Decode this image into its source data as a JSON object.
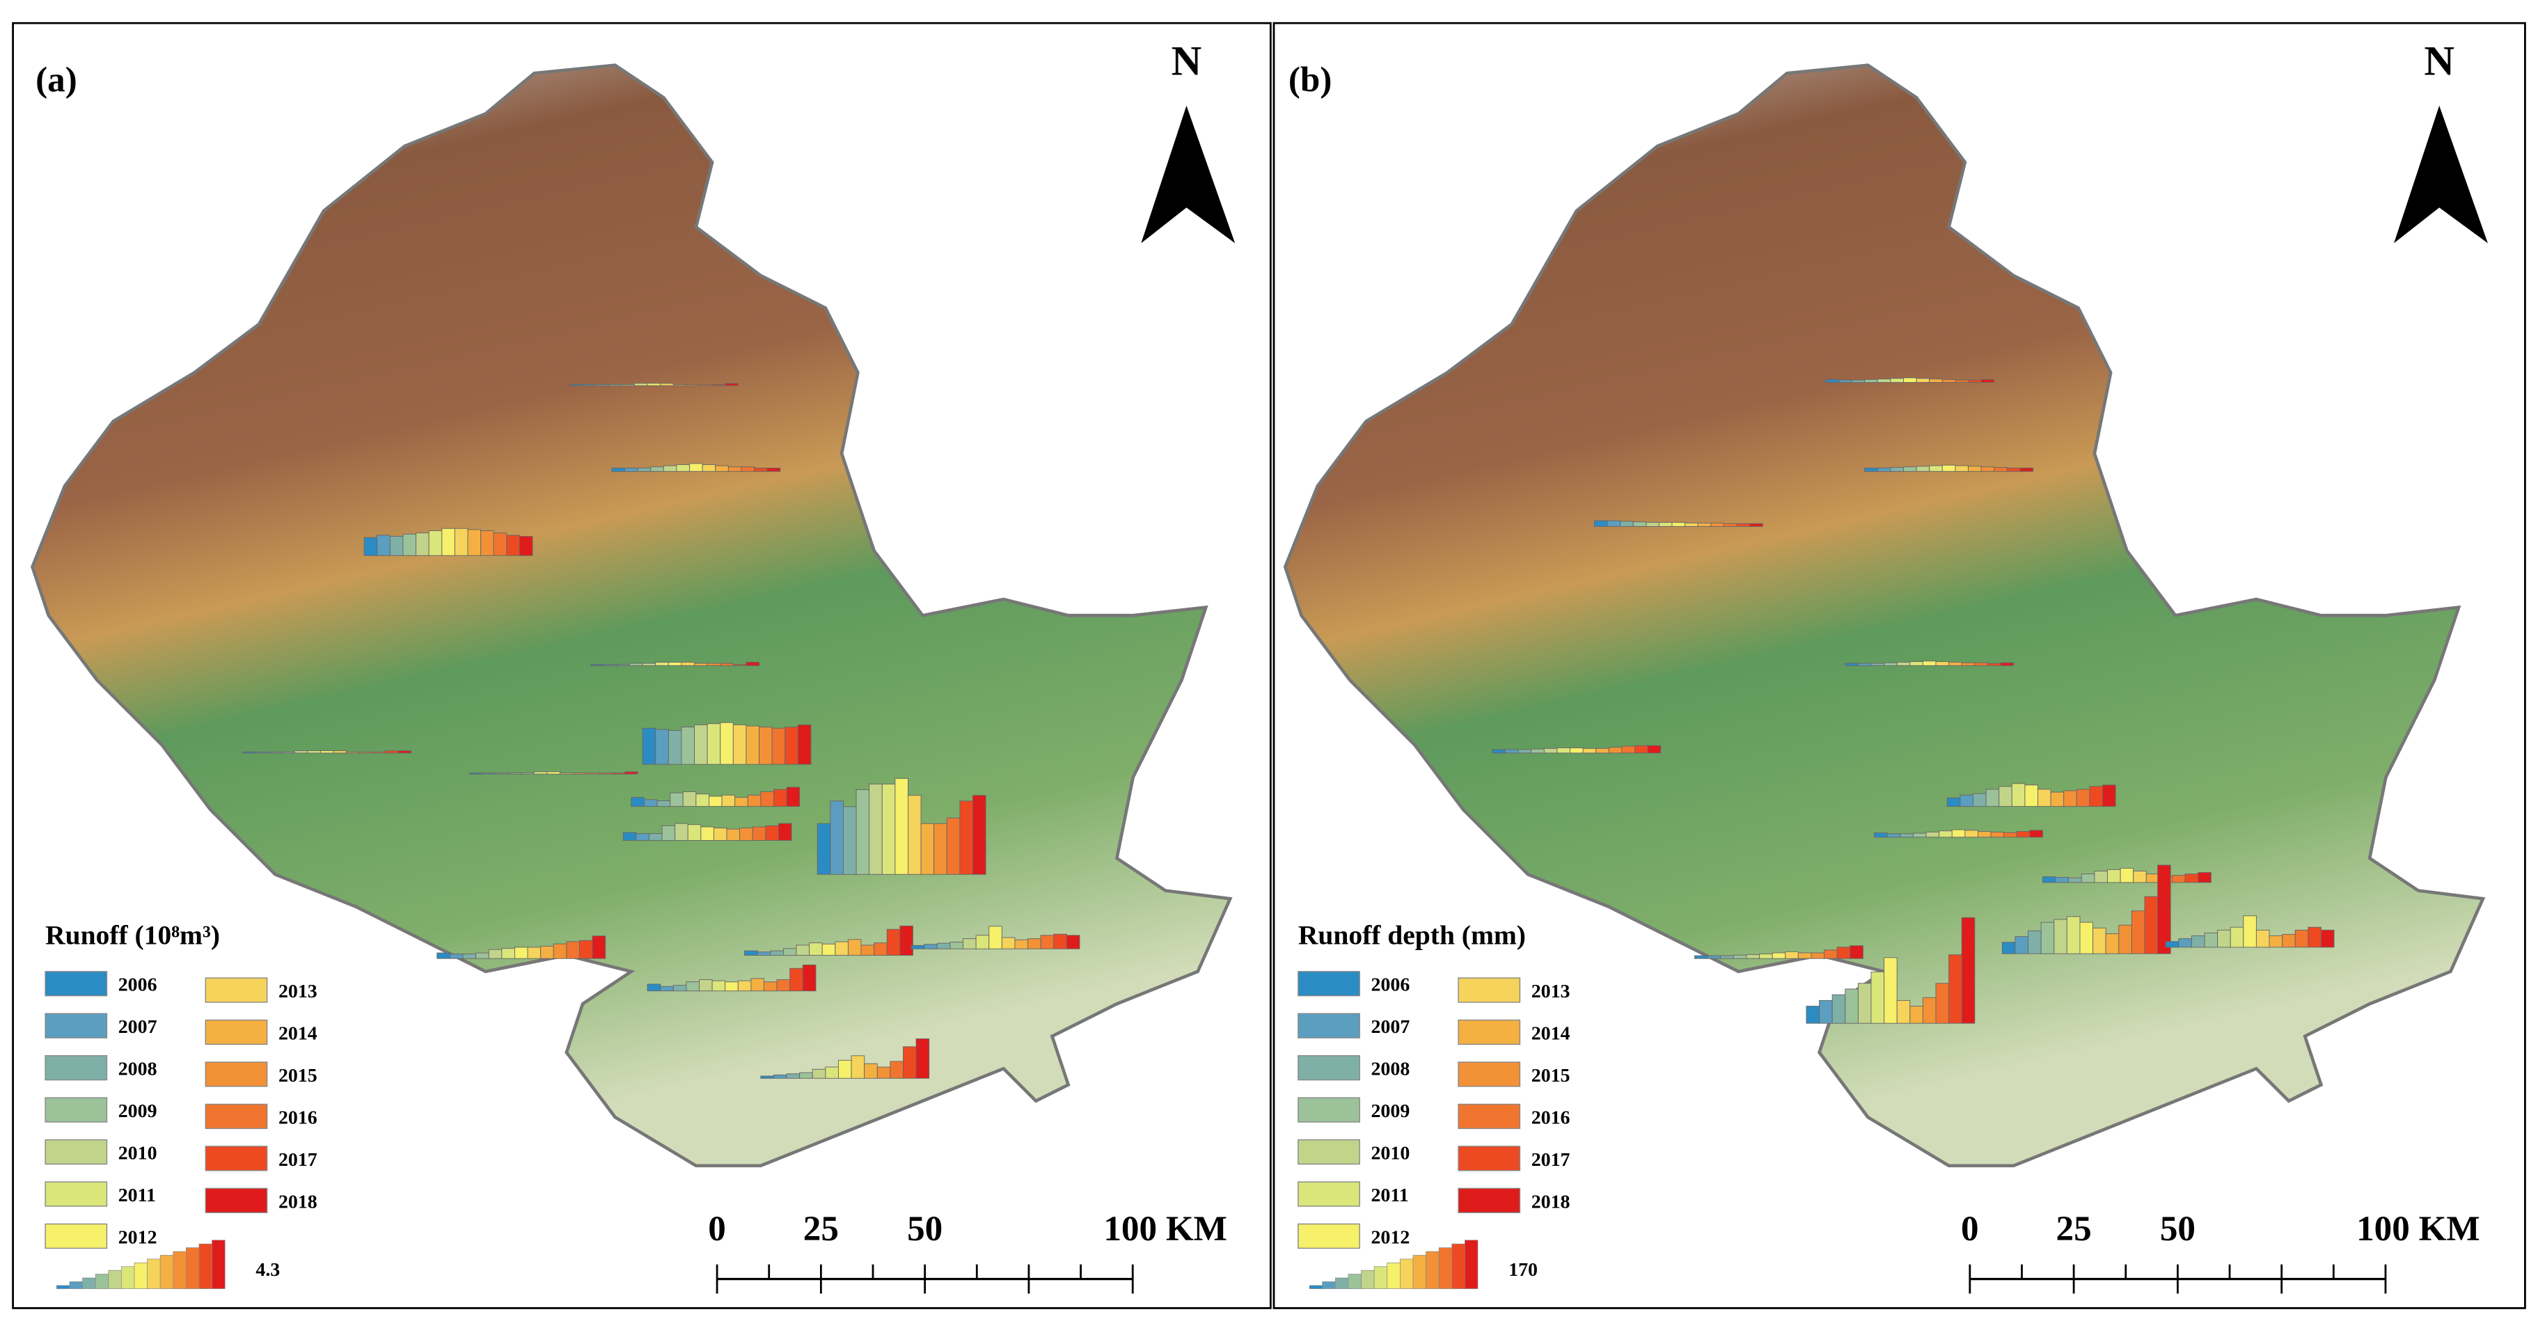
{
  "panels": [
    {
      "label": "(a)",
      "north": "N",
      "legend_title": "Runoff (10⁸m³)",
      "key_max": 4.3,
      "scale_labels": [
        "0",
        "25",
        "50",
        "100 KM"
      ],
      "stations": [
        {
          "values": [
            0.1,
            0.1,
            0.1,
            0.1,
            0.1,
            0.2,
            0.2,
            0.2,
            0.1,
            0.1,
            0.1,
            0.1,
            0.2
          ]
        },
        {
          "values": [
            0.3,
            0.3,
            0.3,
            0.4,
            0.5,
            0.6,
            0.7,
            0.6,
            0.5,
            0.4,
            0.4,
            0.3,
            0.3
          ]
        },
        {
          "values": [
            1.6,
            1.8,
            1.7,
            1.9,
            2.0,
            2.2,
            2.4,
            2.4,
            2.3,
            2.2,
            2.0,
            1.8,
            1.7
          ]
        },
        {
          "values": [
            0.1,
            0.1,
            0.1,
            0.2,
            0.2,
            0.3,
            0.3,
            0.3,
            0.2,
            0.2,
            0.2,
            0.1,
            0.3
          ]
        },
        {
          "values": [
            3.2,
            3.1,
            3.0,
            3.3,
            3.5,
            3.6,
            3.7,
            3.5,
            3.4,
            3.3,
            3.2,
            3.3,
            3.5
          ]
        },
        {
          "values": [
            0.1,
            0.1,
            0.1,
            0.1,
            0.2,
            0.2,
            0.2,
            0.2,
            0.1,
            0.1,
            0.1,
            0.2,
            0.2
          ]
        },
        {
          "values": [
            0.1,
            0.1,
            0.1,
            0.1,
            0.1,
            0.2,
            0.2,
            0.1,
            0.1,
            0.1,
            0.1,
            0.1,
            0.2
          ]
        },
        {
          "values": [
            0.8,
            0.6,
            0.5,
            1.2,
            1.3,
            1.1,
            0.9,
            1.0,
            0.8,
            1.0,
            1.3,
            1.5,
            1.7
          ]
        },
        {
          "values": [
            0.7,
            0.6,
            0.6,
            1.3,
            1.5,
            1.4,
            1.2,
            1.1,
            1.0,
            1.1,
            1.2,
            1.3,
            1.5
          ]
        },
        {
          "values": [
            4.5,
            6.5,
            6.0,
            7.5,
            8.0,
            8.0,
            8.5,
            7.0,
            4.5,
            4.5,
            5.0,
            6.5,
            7.0
          ]
        },
        {
          "values": [
            0.5,
            0.4,
            0.4,
            0.5,
            0.8,
            0.9,
            1.0,
            1.0,
            1.1,
            1.3,
            1.5,
            1.6,
            2.0
          ]
        },
        {
          "values": [
            0.4,
            0.3,
            0.4,
            0.6,
            0.9,
            1.1,
            1.0,
            1.2,
            1.4,
            0.9,
            1.1,
            2.3,
            2.6
          ]
        },
        {
          "values": [
            0.3,
            0.4,
            0.5,
            0.6,
            0.9,
            1.2,
            2.0,
            1.0,
            0.8,
            0.9,
            1.2,
            1.3,
            1.2
          ]
        },
        {
          "values": [
            0.6,
            0.4,
            0.5,
            0.8,
            1.0,
            0.9,
            0.8,
            0.9,
            1.1,
            0.8,
            1.0,
            2.0,
            2.3
          ]
        },
        {
          "values": [
            0.2,
            0.3,
            0.4,
            0.5,
            0.8,
            1.0,
            1.6,
            2.0,
            1.3,
            1.0,
            1.5,
            2.8,
            3.5
          ]
        }
      ]
    },
    {
      "label": "(b)",
      "north": "N",
      "legend_title": "Runoff depth (mm)",
      "key_max": 170,
      "scale_labels": [
        "0",
        "25",
        "50",
        "100 KM"
      ],
      "stations": [
        {
          "values": [
            10,
            8,
            8,
            10,
            12,
            14,
            16,
            14,
            12,
            10,
            8,
            8,
            10
          ]
        },
        {
          "values": [
            12,
            12,
            14,
            16,
            18,
            20,
            22,
            20,
            18,
            16,
            14,
            12,
            12
          ]
        },
        {
          "values": [
            20,
            20,
            18,
            16,
            14,
            14,
            14,
            12,
            12,
            12,
            10,
            10,
            10
          ]
        },
        {
          "values": [
            8,
            8,
            8,
            10,
            12,
            14,
            16,
            14,
            12,
            10,
            10,
            8,
            10
          ]
        },
        {
          "values": [
            12,
            12,
            12,
            14,
            16,
            18,
            18,
            16,
            16,
            20,
            24,
            26,
            26
          ]
        },
        {
          "values": [
            30,
            40,
            45,
            60,
            70,
            80,
            75,
            60,
            50,
            55,
            60,
            70,
            75
          ]
        },
        {
          "values": [
            15,
            12,
            12,
            14,
            18,
            22,
            26,
            24,
            20,
            18,
            16,
            20,
            24
          ]
        },
        {
          "values": [
            20,
            18,
            16,
            30,
            40,
            45,
            50,
            40,
            30,
            20,
            25,
            30,
            35
          ]
        },
        {
          "values": [
            60,
            80,
            100,
            120,
            140,
            180,
            230,
            80,
            60,
            90,
            140,
            240,
            370
          ]
        },
        {
          "values": [
            40,
            60,
            80,
            110,
            120,
            130,
            110,
            90,
            70,
            100,
            150,
            200,
            310
          ]
        },
        {
          "values": [
            20,
            30,
            40,
            50,
            60,
            70,
            110,
            60,
            40,
            45,
            60,
            70,
            60
          ]
        },
        {
          "values": [
            10,
            10,
            10,
            12,
            14,
            16,
            20,
            24,
            20,
            20,
            30,
            40,
            45
          ]
        }
      ]
    }
  ],
  "legend": [
    {
      "year": "2006",
      "color": "#2b8cc4"
    },
    {
      "year": "2007",
      "color": "#5b9ec0"
    },
    {
      "year": "2008",
      "color": "#7fb0a8"
    },
    {
      "year": "2009",
      "color": "#9cc29a"
    },
    {
      "year": "2010",
      "color": "#c2d48a"
    },
    {
      "year": "2011",
      "color": "#dbe67a"
    },
    {
      "year": "2012",
      "color": "#f6f06a"
    },
    {
      "year": "2013",
      "color": "#f6d35a"
    },
    {
      "year": "2014",
      "color": "#f5b042"
    },
    {
      "year": "2015",
      "color": "#f39136"
    },
    {
      "year": "2016",
      "color": "#f1752e"
    },
    {
      "year": "2017",
      "color": "#ee4a22"
    },
    {
      "year": "2018",
      "color": "#e01b1b"
    }
  ]
}
